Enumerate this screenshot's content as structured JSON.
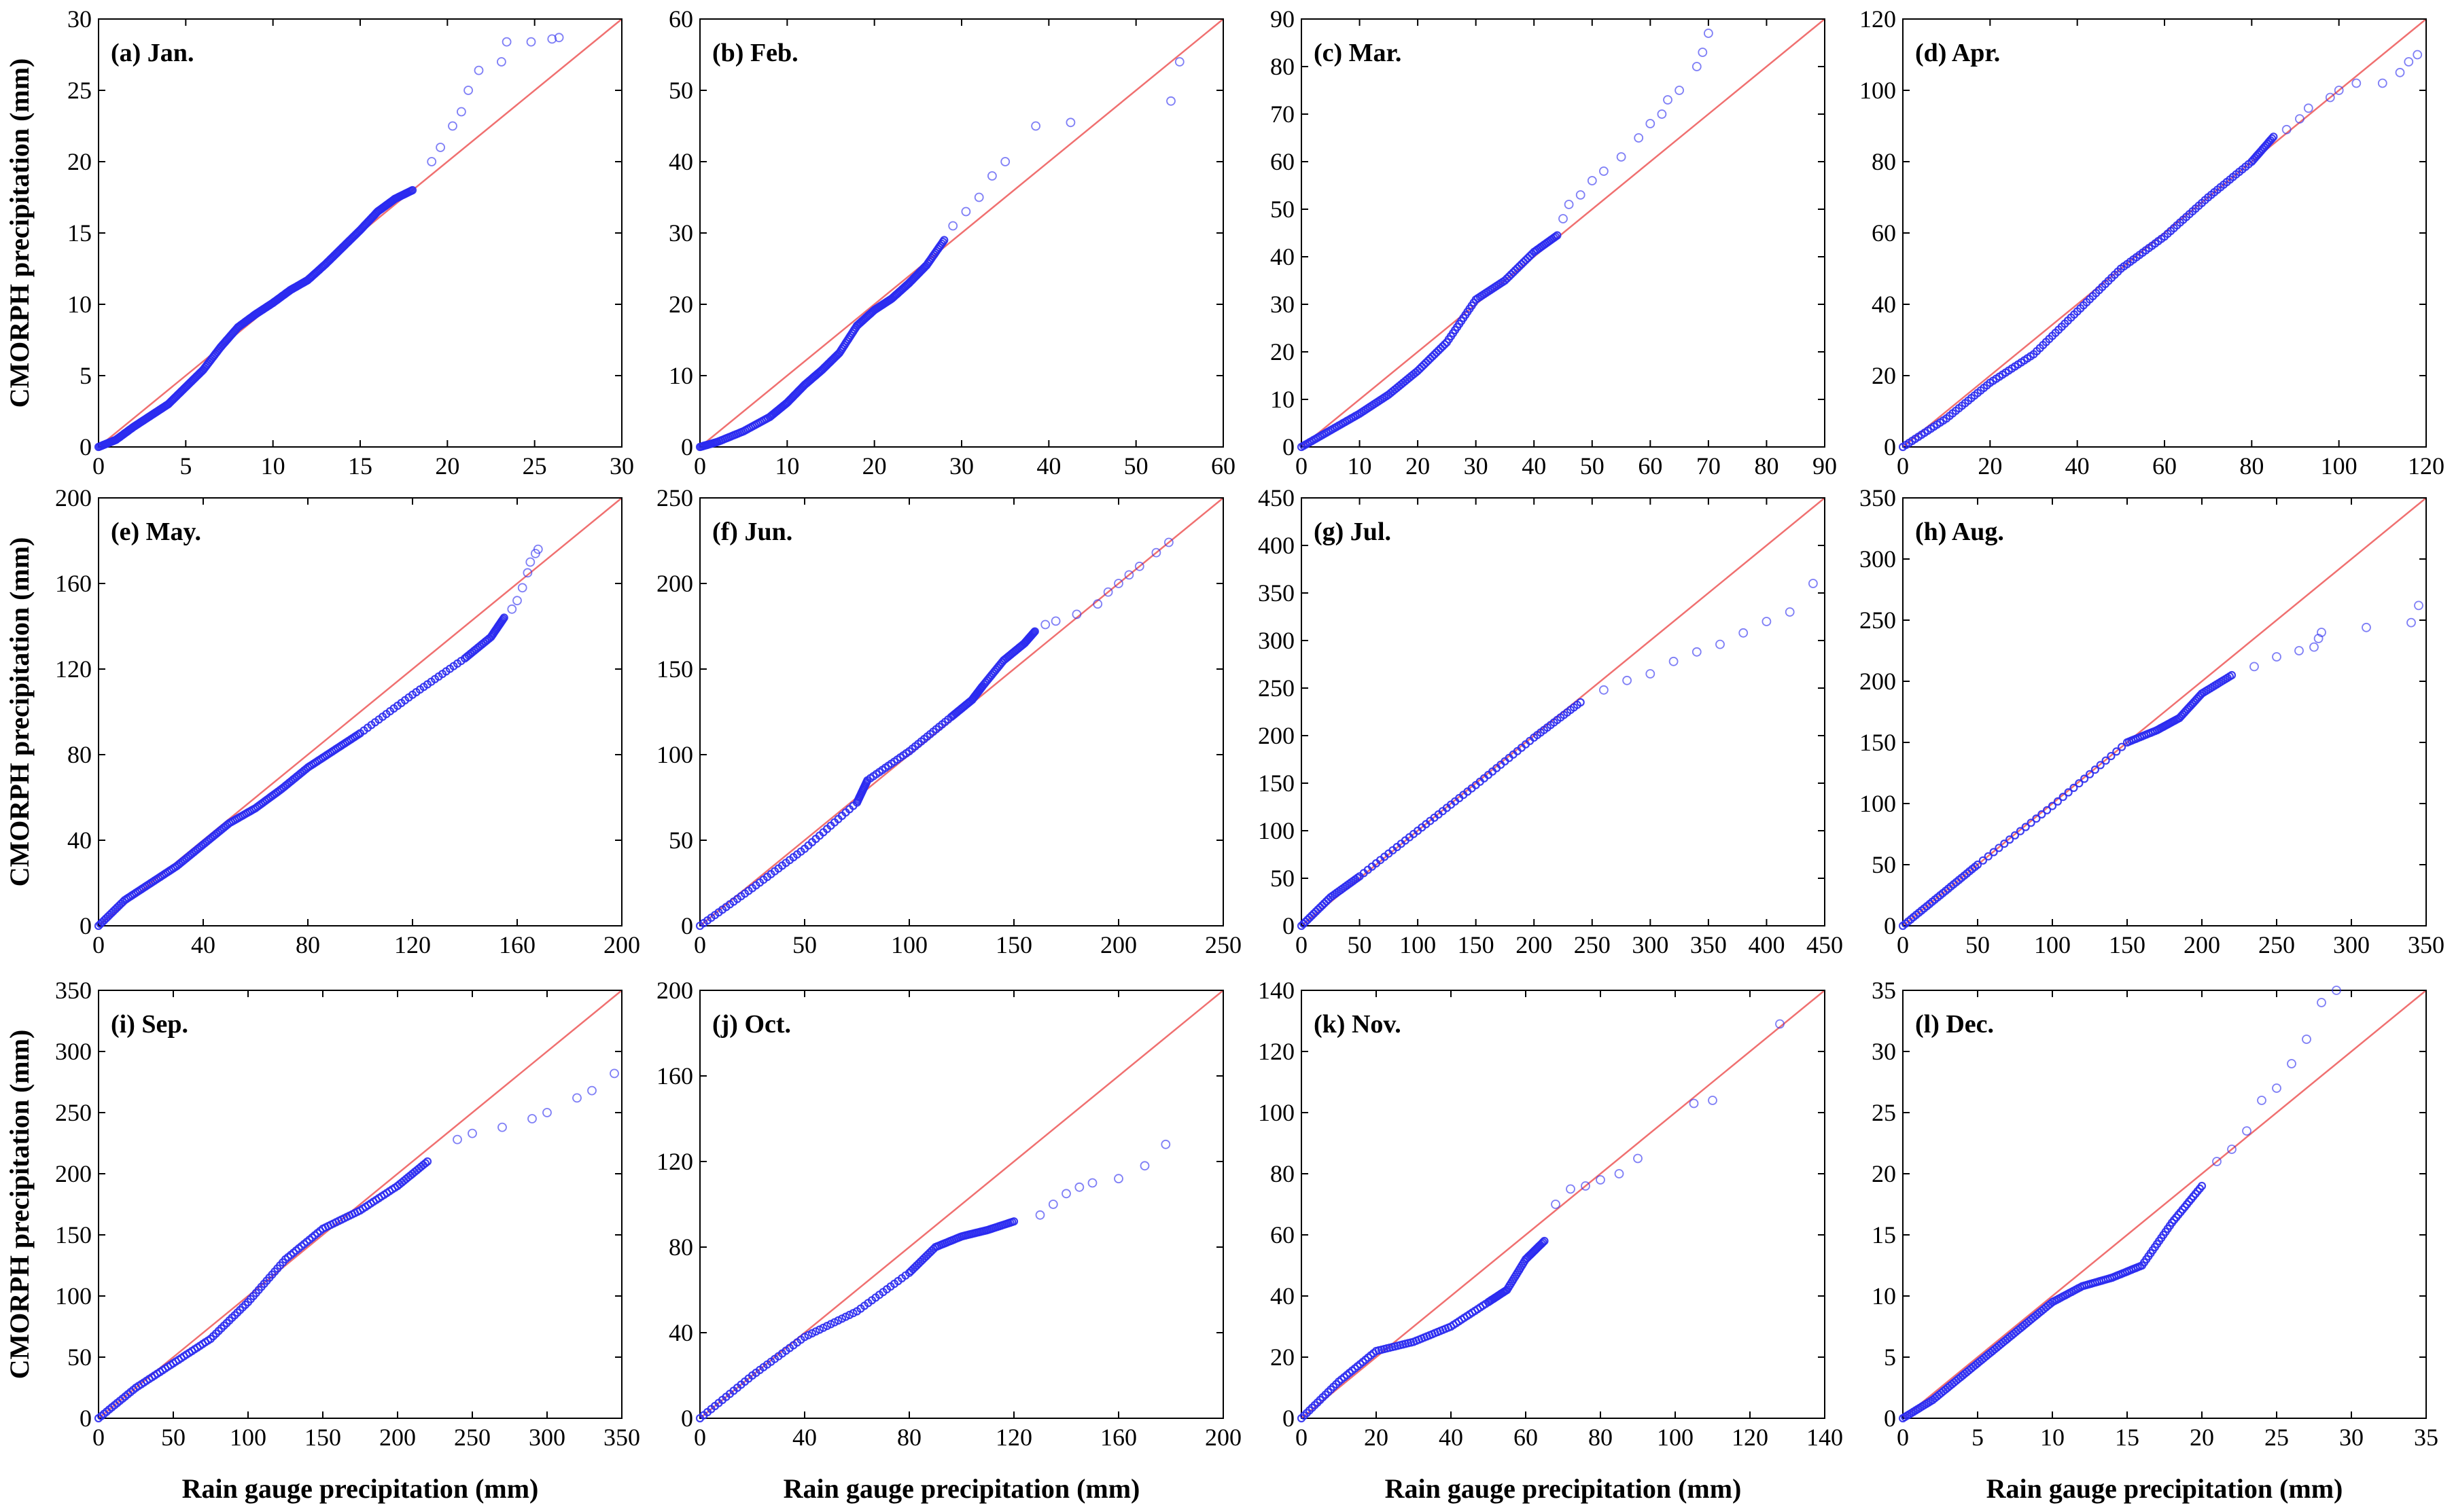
{
  "figure": {
    "xlabel": "Rain gauge precipitation (mm)",
    "ylabel": "CMORPH precipitation (mm)"
  },
  "colors": {
    "points": "#2a2af0",
    "reference_line": "#f07070",
    "axes": "#000000"
  },
  "chart_data": [
    {
      "type": "scatter",
      "title": "(a) Jan.",
      "xlim": [
        0,
        30
      ],
      "ylim": [
        0,
        30
      ],
      "xticks": [
        0,
        5,
        10,
        15,
        20,
        25,
        30
      ],
      "yticks": [
        0,
        5,
        10,
        15,
        20,
        25,
        30
      ],
      "reference_line": "1:1",
      "curve": [
        [
          0,
          0
        ],
        [
          1,
          0.5
        ],
        [
          2,
          1.4
        ],
        [
          3,
          2.2
        ],
        [
          4,
          3.0
        ],
        [
          5,
          4.2
        ],
        [
          6,
          5.4
        ],
        [
          7,
          7.0
        ],
        [
          8,
          8.4
        ],
        [
          9,
          9.3
        ],
        [
          10,
          10.1
        ],
        [
          11,
          11
        ],
        [
          12,
          11.7
        ],
        [
          13,
          12.8
        ],
        [
          14,
          14
        ],
        [
          15,
          15.2
        ],
        [
          16,
          16.5
        ],
        [
          17,
          17.4
        ],
        [
          18,
          18
        ]
      ],
      "tail": [
        [
          19.1,
          20
        ],
        [
          19.6,
          21
        ],
        [
          20.3,
          22.5
        ],
        [
          20.8,
          23.5
        ],
        [
          21.2,
          25
        ],
        [
          21.8,
          26.4
        ],
        [
          23.1,
          27
        ],
        [
          23.4,
          28.4
        ],
        [
          24.8,
          28.4
        ],
        [
          26,
          28.6
        ],
        [
          26.4,
          28.7
        ]
      ]
    },
    {
      "type": "scatter",
      "title": "(b) Feb.",
      "xlim": [
        0,
        60
      ],
      "ylim": [
        0,
        60
      ],
      "xticks": [
        0,
        10,
        20,
        30,
        40,
        50,
        60
      ],
      "yticks": [
        0,
        10,
        20,
        30,
        40,
        50,
        60
      ],
      "reference_line": "1:1",
      "curve": [
        [
          0,
          0
        ],
        [
          2,
          0.7
        ],
        [
          5,
          2.2
        ],
        [
          8,
          4.2
        ],
        [
          10,
          6.2
        ],
        [
          12,
          8.7
        ],
        [
          14,
          10.8
        ],
        [
          16,
          13.2
        ],
        [
          18,
          17
        ],
        [
          20,
          19.2
        ],
        [
          22,
          20.8
        ],
        [
          24,
          23
        ],
        [
          26,
          25.5
        ],
        [
          28,
          29
        ]
      ],
      "tail": [
        [
          29,
          31
        ],
        [
          30.5,
          33
        ],
        [
          32,
          35
        ],
        [
          33.5,
          38
        ],
        [
          35,
          40
        ],
        [
          38.5,
          45
        ],
        [
          42.5,
          45.5
        ],
        [
          54,
          48.5
        ],
        [
          55,
          54
        ]
      ]
    },
    {
      "type": "scatter",
      "title": "(c) Mar.",
      "xlim": [
        0,
        90
      ],
      "ylim": [
        0,
        90
      ],
      "xticks": [
        0,
        10,
        20,
        30,
        40,
        50,
        60,
        70,
        80,
        90
      ],
      "yticks": [
        0,
        10,
        20,
        30,
        40,
        50,
        60,
        70,
        80,
        90
      ],
      "reference_line": "1:1",
      "curve": [
        [
          0,
          0
        ],
        [
          5,
          3.5
        ],
        [
          10,
          7
        ],
        [
          15,
          11
        ],
        [
          20,
          16
        ],
        [
          25,
          22
        ],
        [
          30,
          31
        ],
        [
          35,
          35
        ],
        [
          40,
          41
        ],
        [
          44,
          44.5
        ]
      ],
      "tail": [
        [
          45,
          48
        ],
        [
          46,
          51
        ],
        [
          48,
          53
        ],
        [
          50,
          56
        ],
        [
          52,
          58
        ],
        [
          55,
          61
        ],
        [
          58,
          65
        ],
        [
          60,
          68
        ],
        [
          62,
          70
        ],
        [
          63,
          73
        ],
        [
          65,
          75
        ],
        [
          68,
          80
        ],
        [
          69,
          83
        ],
        [
          70,
          87
        ]
      ]
    },
    {
      "type": "scatter",
      "title": "(d) Apr.",
      "xlim": [
        0,
        120
      ],
      "ylim": [
        0,
        120
      ],
      "xticks": [
        0,
        20,
        40,
        60,
        80,
        100,
        120
      ],
      "yticks": [
        0,
        20,
        40,
        60,
        80,
        100,
        120
      ],
      "reference_line": "1:1",
      "curve": [
        [
          0,
          0
        ],
        [
          10,
          8
        ],
        [
          20,
          18
        ],
        [
          30,
          26
        ],
        [
          40,
          38
        ],
        [
          50,
          50
        ],
        [
          60,
          59
        ],
        [
          70,
          70
        ],
        [
          80,
          80
        ],
        [
          85,
          87
        ]
      ],
      "tail": [
        [
          88,
          89
        ],
        [
          91,
          92
        ],
        [
          93,
          95
        ],
        [
          98,
          98
        ],
        [
          100,
          100
        ],
        [
          104,
          102
        ],
        [
          110,
          102
        ],
        [
          114,
          105
        ],
        [
          116,
          108
        ],
        [
          118,
          110
        ]
      ]
    },
    {
      "type": "scatter",
      "title": "(e) May.",
      "xlim": [
        0,
        200
      ],
      "ylim": [
        0,
        200
      ],
      "xticks": [
        0,
        40,
        80,
        120,
        160,
        200
      ],
      "yticks": [
        0,
        40,
        80,
        120,
        160,
        200
      ],
      "reference_line": "1:1",
      "curve": [
        [
          0,
          0
        ],
        [
          10,
          12
        ],
        [
          20,
          20
        ],
        [
          30,
          28
        ],
        [
          40,
          38
        ],
        [
          50,
          48
        ],
        [
          60,
          55
        ],
        [
          70,
          64
        ],
        [
          80,
          74
        ],
        [
          90,
          82
        ],
        [
          100,
          90
        ],
        [
          120,
          108
        ],
        [
          140,
          125
        ],
        [
          150,
          135
        ],
        [
          155,
          144
        ]
      ],
      "tail": [
        [
          158,
          148
        ],
        [
          160,
          152
        ],
        [
          162,
          158
        ],
        [
          164,
          165
        ],
        [
          165,
          170
        ],
        [
          167,
          174
        ],
        [
          168,
          176
        ]
      ]
    },
    {
      "type": "scatter",
      "title": "(f) Jun.",
      "xlim": [
        0,
        250
      ],
      "ylim": [
        0,
        250
      ],
      "xticks": [
        0,
        50,
        100,
        150,
        200,
        250
      ],
      "yticks": [
        0,
        50,
        100,
        150,
        200,
        250
      ],
      "reference_line": "1:1",
      "curve": [
        [
          0,
          0
        ],
        [
          25,
          22
        ],
        [
          50,
          45
        ],
        [
          75,
          72
        ],
        [
          80,
          85
        ],
        [
          100,
          102
        ],
        [
          120,
          122
        ],
        [
          130,
          132
        ],
        [
          135,
          140
        ],
        [
          145,
          155
        ],
        [
          155,
          165
        ],
        [
          160,
          172
        ]
      ],
      "tail": [
        [
          165,
          176
        ],
        [
          170,
          178
        ],
        [
          180,
          182
        ],
        [
          190,
          188
        ],
        [
          195,
          195
        ],
        [
          200,
          200
        ],
        [
          205,
          205
        ],
        [
          210,
          210
        ],
        [
          218,
          218
        ],
        [
          224,
          224
        ]
      ]
    },
    {
      "type": "scatter",
      "title": "(g) Jul.",
      "xlim": [
        0,
        450
      ],
      "ylim": [
        0,
        450
      ],
      "xticks": [
        0,
        50,
        100,
        150,
        200,
        250,
        300,
        350,
        400,
        450
      ],
      "yticks": [
        0,
        50,
        100,
        150,
        200,
        250,
        300,
        350,
        400,
        450
      ],
      "reference_line": "1:1",
      "curve": [
        [
          0,
          0
        ],
        [
          25,
          30
        ],
        [
          50,
          52
        ],
        [
          100,
          100
        ],
        [
          150,
          148
        ],
        [
          200,
          198
        ],
        [
          240,
          235
        ]
      ],
      "tail": [
        [
          260,
          248
        ],
        [
          280,
          258
        ],
        [
          300,
          265
        ],
        [
          320,
          278
        ],
        [
          340,
          288
        ],
        [
          360,
          296
        ],
        [
          380,
          308
        ],
        [
          400,
          320
        ],
        [
          420,
          330
        ],
        [
          440,
          360
        ]
      ]
    },
    {
      "type": "scatter",
      "title": "(h) Aug.",
      "xlim": [
        0,
        350
      ],
      "ylim": [
        0,
        350
      ],
      "xticks": [
        0,
        50,
        100,
        150,
        200,
        250,
        300,
        350
      ],
      "yticks": [
        0,
        50,
        100,
        150,
        200,
        250,
        300,
        350
      ],
      "reference_line": "1:1",
      "curve": [
        [
          0,
          0
        ],
        [
          25,
          25
        ],
        [
          50,
          50
        ],
        [
          100,
          98
        ],
        [
          150,
          150
        ],
        [
          170,
          160
        ],
        [
          185,
          170
        ],
        [
          200,
          190
        ],
        [
          220,
          205
        ]
      ],
      "tail": [
        [
          235,
          212
        ],
        [
          250,
          220
        ],
        [
          265,
          225
        ],
        [
          275,
          228
        ],
        [
          278,
          235
        ],
        [
          280,
          240
        ],
        [
          310,
          244
        ],
        [
          340,
          248
        ],
        [
          345,
          262
        ]
      ]
    },
    {
      "type": "scatter",
      "title": "(i) Sep.",
      "xlim": [
        0,
        350
      ],
      "ylim": [
        0,
        350
      ],
      "xticks": [
        0,
        50,
        100,
        150,
        200,
        250,
        300,
        350
      ],
      "yticks": [
        0,
        50,
        100,
        150,
        200,
        250,
        300,
        350
      ],
      "reference_line": "1:1",
      "curve": [
        [
          0,
          0
        ],
        [
          25,
          25
        ],
        [
          50,
          45
        ],
        [
          75,
          65
        ],
        [
          100,
          95
        ],
        [
          125,
          130
        ],
        [
          150,
          155
        ],
        [
          175,
          170
        ],
        [
          200,
          190
        ],
        [
          220,
          210
        ]
      ],
      "tail": [
        [
          240,
          228
        ],
        [
          250,
          233
        ],
        [
          270,
          238
        ],
        [
          290,
          245
        ],
        [
          300,
          250
        ],
        [
          320,
          262
        ],
        [
          330,
          268
        ],
        [
          345,
          282
        ]
      ]
    },
    {
      "type": "scatter",
      "title": "(j) Oct.",
      "xlim": [
        0,
        200
      ],
      "ylim": [
        0,
        200
      ],
      "xticks": [
        0,
        40,
        80,
        120,
        160,
        200
      ],
      "yticks": [
        0,
        40,
        80,
        120,
        160,
        200
      ],
      "reference_line": "1:1",
      "curve": [
        [
          0,
          0
        ],
        [
          20,
          20
        ],
        [
          40,
          38
        ],
        [
          60,
          50
        ],
        [
          80,
          68
        ],
        [
          90,
          80
        ],
        [
          100,
          85
        ],
        [
          110,
          88
        ],
        [
          120,
          92
        ]
      ],
      "tail": [
        [
          130,
          95
        ],
        [
          135,
          100
        ],
        [
          140,
          105
        ],
        [
          145,
          108
        ],
        [
          150,
          110
        ],
        [
          160,
          112
        ],
        [
          170,
          118
        ],
        [
          178,
          128
        ]
      ]
    },
    {
      "type": "scatter",
      "title": "(k) Nov.",
      "xlim": [
        0,
        140
      ],
      "ylim": [
        0,
        140
      ],
      "xticks": [
        0,
        20,
        40,
        60,
        80,
        100,
        120,
        140
      ],
      "yticks": [
        0,
        20,
        40,
        60,
        80,
        100,
        120,
        140
      ],
      "reference_line": "1:1",
      "curve": [
        [
          0,
          0
        ],
        [
          10,
          12
        ],
        [
          20,
          22
        ],
        [
          30,
          25
        ],
        [
          40,
          30
        ],
        [
          50,
          38
        ],
        [
          55,
          42
        ],
        [
          60,
          52
        ],
        [
          65,
          58
        ]
      ],
      "tail": [
        [
          68,
          70
        ],
        [
          72,
          75
        ],
        [
          76,
          76
        ],
        [
          80,
          78
        ],
        [
          85,
          80
        ],
        [
          90,
          85
        ],
        [
          105,
          103
        ],
        [
          110,
          104
        ],
        [
          128,
          129
        ]
      ]
    },
    {
      "type": "scatter",
      "title": "(l) Dec.",
      "xlim": [
        0,
        35
      ],
      "ylim": [
        0,
        35
      ],
      "xticks": [
        0,
        5,
        10,
        15,
        20,
        25,
        30,
        35
      ],
      "yticks": [
        0,
        5,
        10,
        15,
        20,
        25,
        30,
        35
      ],
      "reference_line": "1:1",
      "curve": [
        [
          0,
          0
        ],
        [
          2,
          1.5
        ],
        [
          4,
          3.5
        ],
        [
          6,
          5.5
        ],
        [
          8,
          7.5
        ],
        [
          10,
          9.5
        ],
        [
          12,
          10.8
        ],
        [
          14,
          11.5
        ],
        [
          16,
          12.5
        ],
        [
          18,
          16
        ],
        [
          20,
          19
        ]
      ],
      "tail": [
        [
          21,
          21
        ],
        [
          22,
          22
        ],
        [
          23,
          23.5
        ],
        [
          24,
          26
        ],
        [
          25,
          27
        ],
        [
          26,
          29
        ],
        [
          27,
          31
        ],
        [
          28,
          34
        ],
        [
          29,
          35
        ]
      ]
    }
  ]
}
